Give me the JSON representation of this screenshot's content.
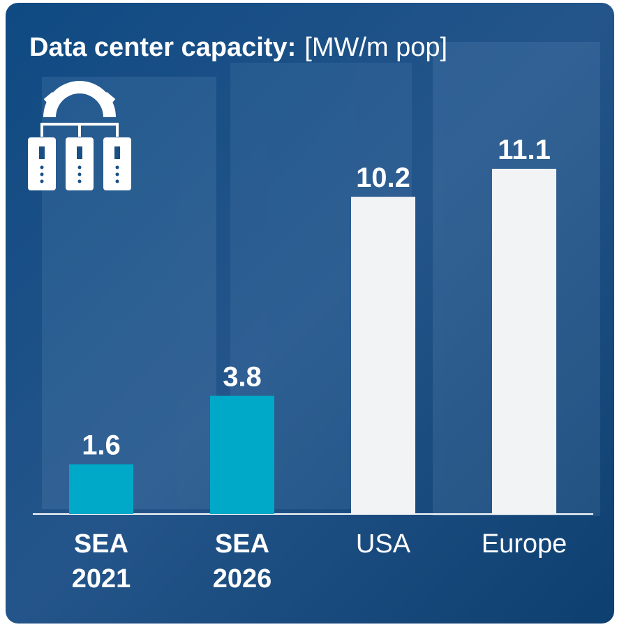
{
  "chart_data": {
    "type": "bar",
    "title": "Data center capacity:",
    "unit": "[MW/m pop]",
    "categories": [
      "SEA 2021",
      "SEA 2026",
      "USA",
      "Europe"
    ],
    "values": [
      1.6,
      3.8,
      10.2,
      11.1
    ],
    "colors": [
      "#00a9c8",
      "#00a9c8",
      "#f2f3f5",
      "#f2f3f5"
    ],
    "ylim": [
      0,
      11.1
    ]
  }
}
